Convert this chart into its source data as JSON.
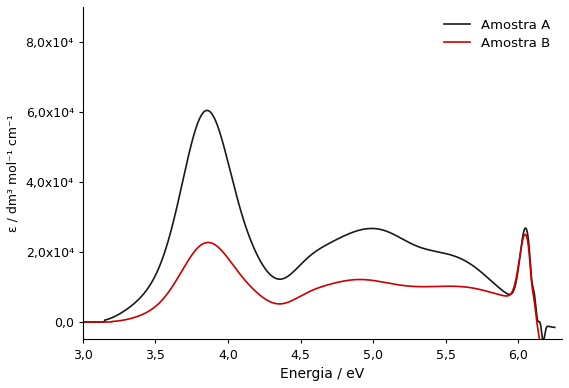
{
  "title": "",
  "xlabel": "Energia / eV",
  "ylabel": "ε / dm³ mol⁻¹ cm⁻¹",
  "xlim": [
    3.0,
    6.3
  ],
  "ylim": [
    -5000,
    90000
  ],
  "yticks": [
    0,
    20000,
    40000,
    60000,
    80000
  ],
  "ytick_labels": [
    "0,0",
    "2,0x10⁴",
    "4,0x10⁴",
    "6,0x10⁴",
    "8,0x10⁴"
  ],
  "xticks": [
    3.0,
    3.5,
    4.0,
    4.5,
    5.0,
    5.5,
    6.0
  ],
  "xtick_labels": [
    "3,0",
    "3,5",
    "4,0",
    "4,5",
    "5,0",
    "5,5",
    "6,0"
  ],
  "legend_A": "Amostra A",
  "legend_B": "Amostra B",
  "color_A": "#1a1a1a",
  "color_B": "#cc0000",
  "linewidth": 1.2,
  "background_color": "#ffffff"
}
